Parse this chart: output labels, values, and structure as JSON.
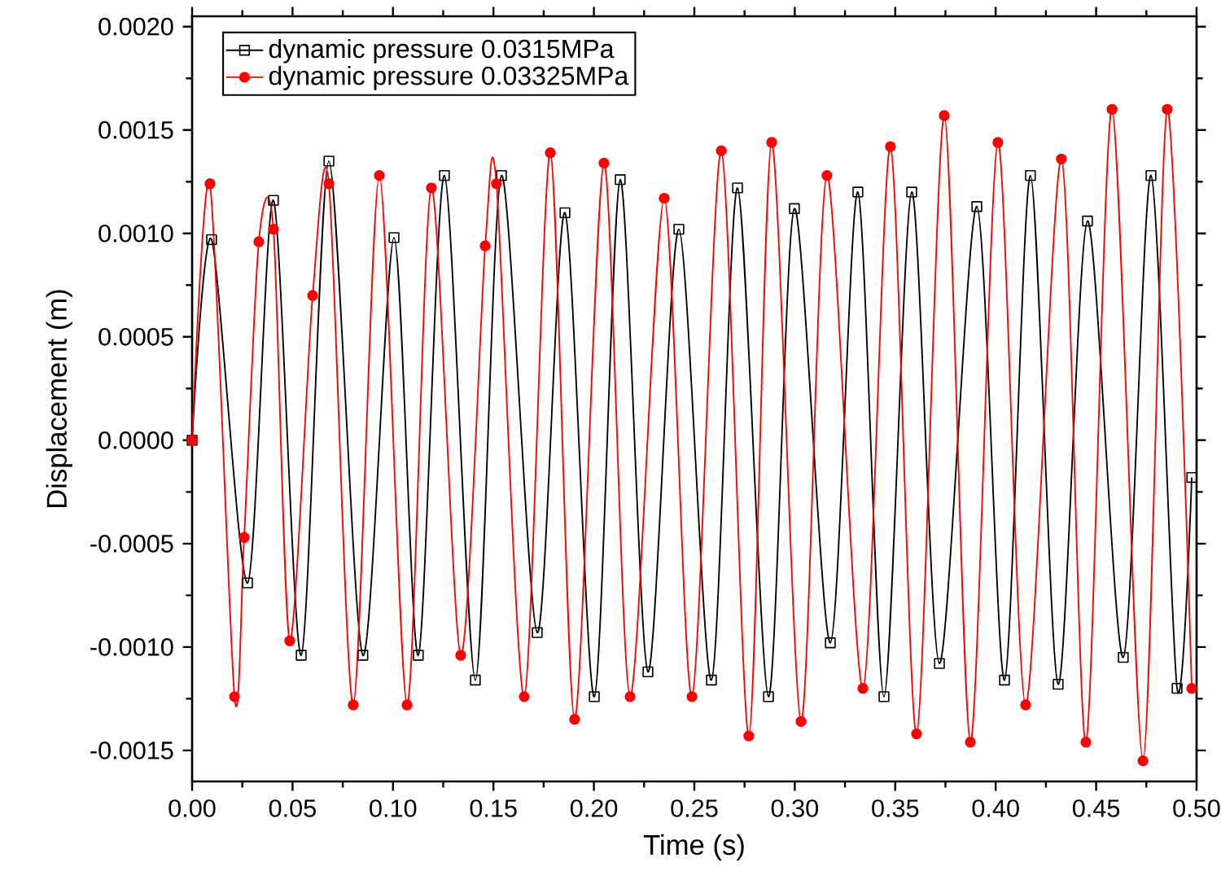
{
  "chart_data": {
    "type": "line",
    "xlabel": "Time (s)",
    "ylabel": "Displacement (m)",
    "xlim": [
      0,
      0.5
    ],
    "ylim": [
      -0.00165,
      0.00205
    ],
    "xticks": [
      {
        "value": 0,
        "label": "0.00"
      },
      {
        "value": 0.05,
        "label": "0.05"
      },
      {
        "value": 0.1,
        "label": "0.10"
      },
      {
        "value": 0.15,
        "label": "0.15"
      },
      {
        "value": 0.2,
        "label": "0.20"
      },
      {
        "value": 0.25,
        "label": "0.25"
      },
      {
        "value": 0.3,
        "label": "0.30"
      },
      {
        "value": 0.35,
        "label": "0.35"
      },
      {
        "value": 0.4,
        "label": "0.40"
      },
      {
        "value": 0.45,
        "label": "0.45"
      },
      {
        "value": 0.5,
        "label": "0.50"
      }
    ],
    "yticks": [
      {
        "value": -0.0015,
        "label": "-0.0015"
      },
      {
        "value": -0.001,
        "label": "-0.0010"
      },
      {
        "value": -0.0005,
        "label": "-0.0005"
      },
      {
        "value": 0,
        "label": "0.0000"
      },
      {
        "value": 0.0005,
        "label": "0.0005"
      },
      {
        "value": 0.001,
        "label": "0.0010"
      },
      {
        "value": 0.0015,
        "label": "0.0015"
      },
      {
        "value": 0.002,
        "label": "0.0020"
      }
    ],
    "grid": false,
    "legend": "top left",
    "series": [
      {
        "name": "dynamic pressure 0.0315MPa",
        "color": "#000000",
        "marker": "square",
        "x": [
          0,
          0.0097,
          0.0276,
          0.0405,
          0.0543,
          0.0681,
          0.085,
          0.1005,
          0.1126,
          0.1256,
          0.141,
          0.154,
          0.1718,
          0.1856,
          0.2002,
          0.2131,
          0.2269,
          0.2423,
          0.2585,
          0.2715,
          0.2869,
          0.2998,
          0.3177,
          0.3314,
          0.3444,
          0.3582,
          0.372,
          0.3906,
          0.4044,
          0.4173,
          0.4311,
          0.4457,
          0.4635,
          0.4773,
          0.4903,
          0.4976
        ],
        "values": [
          0,
          0.00097,
          -0.00069,
          0.00116,
          -0.00104,
          0.00135,
          -0.00104,
          0.00098,
          -0.00104,
          0.00128,
          -0.00116,
          0.00128,
          -0.00093,
          0.0011,
          -0.00124,
          0.00126,
          -0.00112,
          0.00102,
          -0.00116,
          0.00122,
          -0.00124,
          0.00112,
          -0.00098,
          0.0012,
          -0.00124,
          0.0012,
          -0.00108,
          0.00113,
          -0.00116,
          0.00128,
          -0.00118,
          0.00106,
          -0.00105,
          0.00128,
          -0.0012,
          -0.00018
        ]
      },
      {
        "name": "dynamic pressure 0.03325MPa",
        "color": "#ff0000",
        "marker": "circle",
        "x": [
          0,
          0.0089,
          0.0211,
          0.0259,
          0.0332,
          0.0405,
          0.0486,
          0.06,
          0.0681,
          0.0802,
          0.0932,
          0.107,
          0.1191,
          0.1337,
          0.1459,
          0.1515,
          0.1653,
          0.1783,
          0.1904,
          0.205,
          0.218,
          0.235,
          0.2488,
          0.2634,
          0.2771,
          0.2885,
          0.3031,
          0.316,
          0.3339,
          0.3476,
          0.3606,
          0.3744,
          0.3874,
          0.4011,
          0.4149,
          0.4327,
          0.4449,
          0.4579,
          0.4733,
          0.4854,
          0.4976
        ],
        "values": [
          0,
          0.00124,
          -0.00124,
          -0.00047,
          0.00096,
          0.00102,
          -0.00097,
          0.0007,
          0.00124,
          -0.00128,
          0.00128,
          -0.00128,
          0.00122,
          -0.00104,
          0.00094,
          0.00124,
          -0.00124,
          0.00139,
          -0.00135,
          0.00134,
          -0.00124,
          0.00117,
          -0.00124,
          0.0014,
          -0.00143,
          0.00144,
          -0.00136,
          0.00128,
          -0.0012,
          0.00142,
          -0.00142,
          0.00157,
          -0.00146,
          0.00144,
          -0.00128,
          0.00136,
          -0.00146,
          0.0016,
          -0.00155,
          0.0016,
          -0.0012
        ]
      }
    ]
  }
}
